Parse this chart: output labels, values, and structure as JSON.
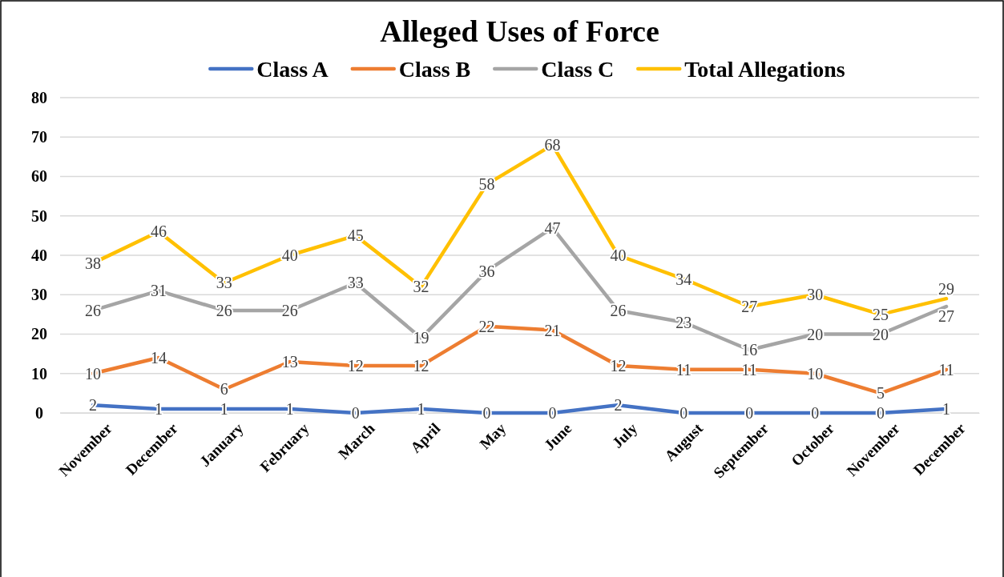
{
  "chart_data": {
    "type": "line",
    "title": "Alleged Uses of Force",
    "categories": [
      "November",
      "December",
      "January",
      "February",
      "March",
      "April",
      "May",
      "June",
      "July",
      "August",
      "September",
      "October",
      "November",
      "December"
    ],
    "series": [
      {
        "name": "Class A",
        "color": "#4472c4",
        "values": [
          2,
          1,
          1,
          1,
          0,
          1,
          0,
          0,
          2,
          0,
          0,
          0,
          0,
          1
        ]
      },
      {
        "name": "Class B",
        "color": "#ed7d31",
        "values": [
          10,
          14,
          6,
          13,
          12,
          12,
          22,
          21,
          12,
          11,
          11,
          10,
          5,
          11
        ]
      },
      {
        "name": "Class C",
        "color": "#a5a5a5",
        "values": [
          26,
          31,
          26,
          26,
          33,
          19,
          36,
          47,
          26,
          23,
          16,
          20,
          20,
          27
        ]
      },
      {
        "name": "Total Allegations",
        "color": "#ffc000",
        "values": [
          38,
          46,
          33,
          40,
          45,
          32,
          58,
          68,
          40,
          34,
          27,
          30,
          25,
          29
        ]
      }
    ],
    "ylim": [
      0,
      80
    ],
    "yticks": [
      0,
      10,
      20,
      30,
      40,
      50,
      60,
      70,
      80
    ],
    "grid": "y",
    "legend": "top",
    "data_labels": true,
    "marker": "none",
    "line_style": "solid"
  }
}
